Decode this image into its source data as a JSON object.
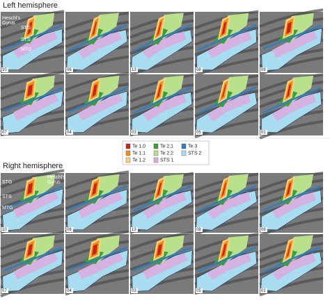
{
  "left_hemisphere": {
    "title": "Left hemisphere",
    "panels": [
      "10",
      "06",
      "13",
      "08",
      "09",
      "07",
      "04",
      "03",
      "05",
      "01"
    ],
    "annotations": [
      "Heschl's",
      "Gyrus",
      "STG",
      "STS",
      "MTG"
    ]
  },
  "legend": [
    {
      "label": "Te 1.0",
      "color": "#c4261c"
    },
    {
      "label": "Te 1.1",
      "color": "#f28c1c"
    },
    {
      "label": "Te 1.2",
      "color": "#f6d27c"
    },
    {
      "label": "Te 2.1",
      "color": "#3d9f3a"
    },
    {
      "label": "Te 2.2",
      "color": "#b9e08a"
    },
    {
      "label": "STS 1",
      "color": "#d6b2e2"
    },
    {
      "label": "Te 3",
      "color": "#2e7fc2"
    },
    {
      "label": "STS 2",
      "color": "#a8dcf0"
    }
  ],
  "right_hemisphere": {
    "title": "Right hemisphere",
    "panels": [
      "10",
      "06",
      "13",
      "08",
      "09",
      "07",
      "04",
      "03",
      "05",
      "01"
    ],
    "annotations": [
      "STG",
      "STS",
      "MTG",
      "Heschl's",
      "Gyrus"
    ]
  }
}
